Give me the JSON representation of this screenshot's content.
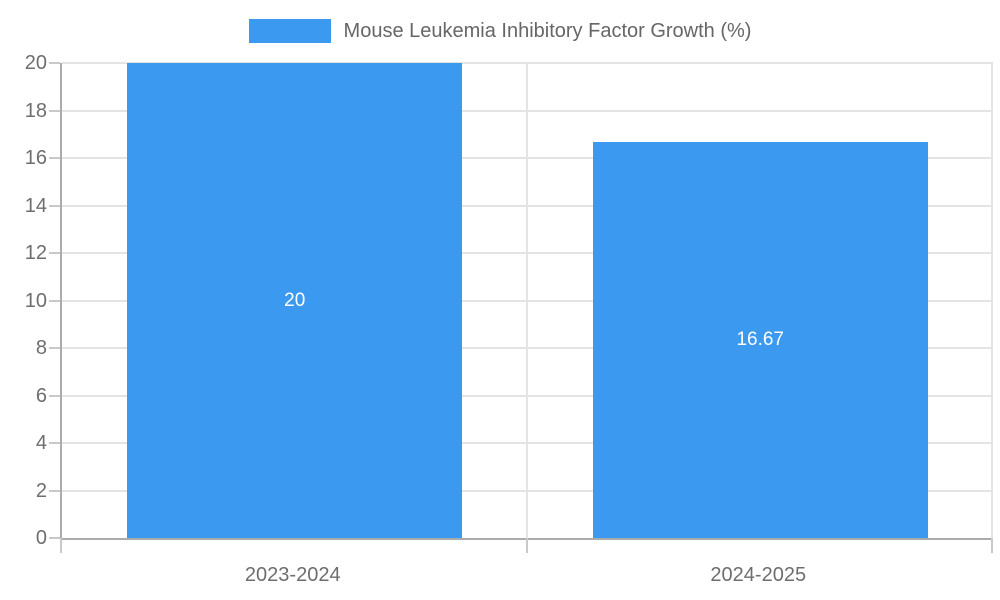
{
  "chart_data": {
    "type": "bar",
    "title": "Mouse Leukemia Inhibitory Factor Growth (%)",
    "xlabel": "",
    "ylabel": "",
    "categories": [
      "2023-2024",
      "2024-2025"
    ],
    "series": [
      {
        "name": "Mouse Leukemia Inhibitory Factor Growth (%)",
        "values": [
          20,
          16.67
        ]
      }
    ],
    "value_labels": [
      "20",
      "16.67"
    ],
    "ylim": [
      0,
      20
    ],
    "ytick_step": 2,
    "yticks": [
      0,
      2,
      4,
      6,
      8,
      10,
      12,
      14,
      16,
      18,
      20
    ],
    "grid": true,
    "legend": {
      "position": "top-center",
      "label": "Mouse Leukemia Inhibitory Factor Growth (%)"
    },
    "bar_width_fraction": 0.72,
    "colors": {
      "bar": "#3B99F0",
      "grid": "#E4E4E4",
      "axis": "#ABABAB",
      "outer_tick": "#C9C9C9",
      "tick_text": "#6E6E6E",
      "legend_text": "#666666",
      "value_label_text": "#FFFFFF",
      "background": "#FFFFFF"
    }
  }
}
